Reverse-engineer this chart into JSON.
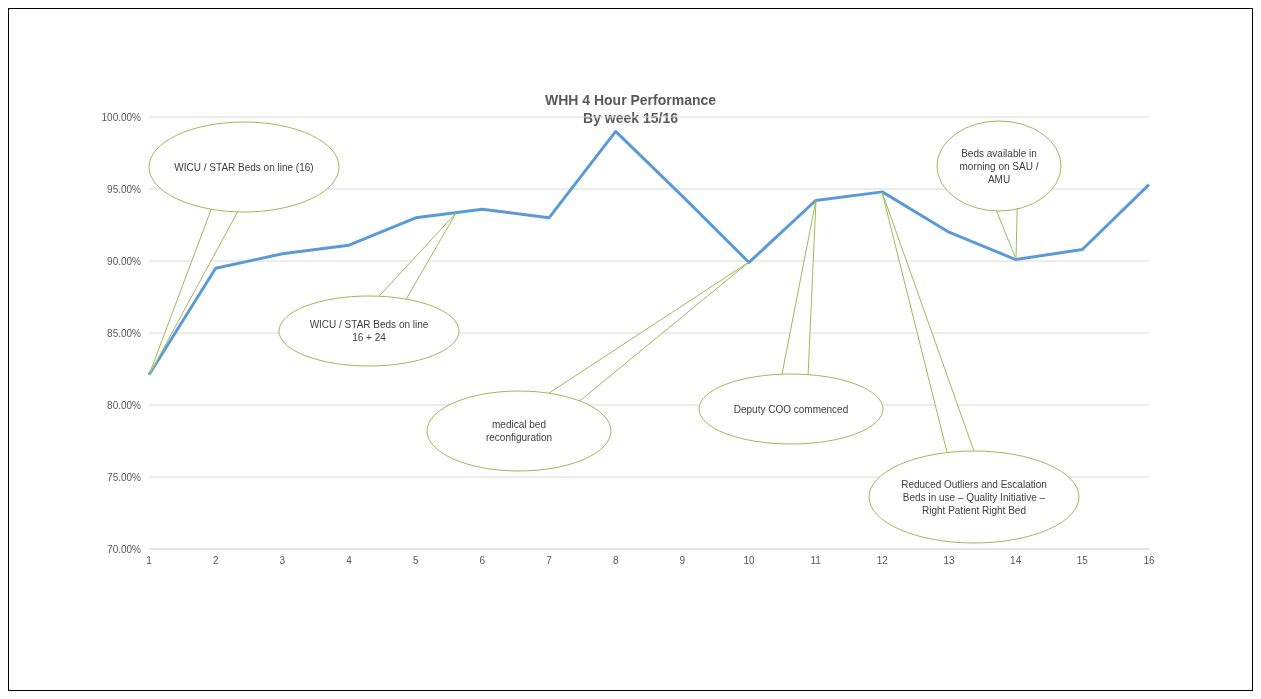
{
  "chart_data": {
    "type": "line",
    "title": "WHH 4 Hour Performance",
    "subtitle": "By week 15/16",
    "categories": [
      "1",
      "2",
      "3",
      "4",
      "5",
      "6",
      "7",
      "8",
      "9",
      "10",
      "11",
      "12",
      "13",
      "14",
      "15",
      "16"
    ],
    "values": [
      82.1,
      89.5,
      90.5,
      91.1,
      93.0,
      93.6,
      93.0,
      99.0,
      94.5,
      89.9,
      94.2,
      94.8,
      92.0,
      90.1,
      90.8,
      95.3
    ],
    "color": "#5b9bd5",
    "marker": "none",
    "line_style": "solid",
    "grid": "y",
    "ylim": [
      70,
      100
    ],
    "yticks": [
      {
        "value": 70,
        "label": "70.00%"
      },
      {
        "value": 75,
        "label": "75.00%"
      },
      {
        "value": 80,
        "label": "80.00%"
      },
      {
        "value": 85,
        "label": "85.00%"
      },
      {
        "value": 90,
        "label": "90.00%"
      },
      {
        "value": 95,
        "label": "95.00%"
      },
      {
        "value": 100,
        "label": "100.00%"
      }
    ],
    "annotations": [
      "WICU / STAR Beds on line (16)",
      "WICU / STAR Beds on line 16 + 24",
      "medical bed reconfiguration",
      "Deputy COO commenced",
      "Reduced Outliers and Escalation Beds in use – Quality Initiative – Right Patient Right Bed",
      "Beds available in morning on SAU / AMU"
    ]
  }
}
